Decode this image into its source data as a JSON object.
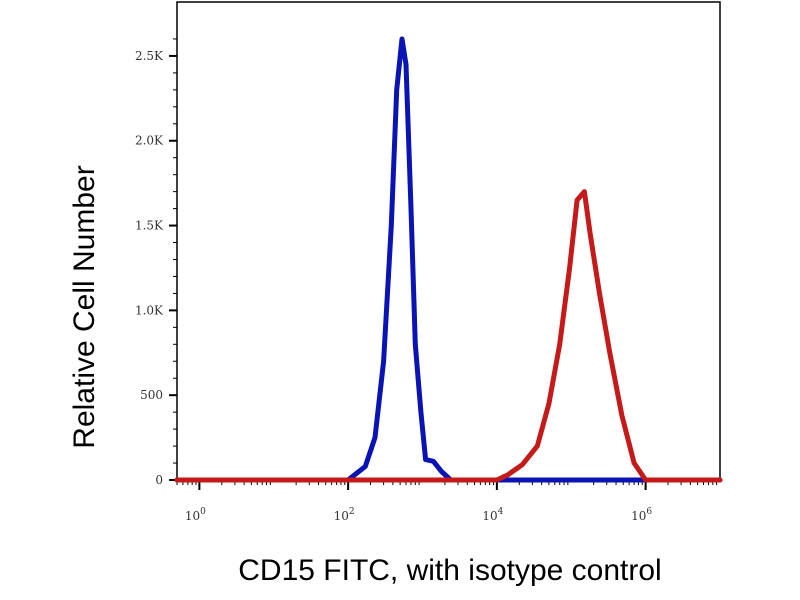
{
  "chart_data": {
    "type": "line",
    "xlabel": "CD15 FITC, with isotype control",
    "ylabel": "Relative Cell Number",
    "x_scale": "log",
    "xlim": [
      0.5,
      10000000
    ],
    "ylim": [
      0,
      2700
    ],
    "x_ticks": [
      {
        "value": 1,
        "label": "10^0"
      },
      {
        "value": 100,
        "label": "10^2"
      },
      {
        "value": 10000,
        "label": "10^4"
      },
      {
        "value": 1000000,
        "label": "10^6"
      }
    ],
    "y_ticks": [
      {
        "value": 0,
        "label": "0"
      },
      {
        "value": 500,
        "label": "500"
      },
      {
        "value": 1000,
        "label": "1.0K"
      },
      {
        "value": 1500,
        "label": "1.5K"
      },
      {
        "value": 2000,
        "label": "2.0K"
      },
      {
        "value": 2500,
        "label": "2.5K"
      }
    ],
    "grid": false,
    "legend": "none",
    "series": [
      {
        "color": "#0a14b4",
        "points": [
          [
            0.5,
            0
          ],
          [
            100,
            0
          ],
          [
            170,
            80
          ],
          [
            230,
            250
          ],
          [
            300,
            700
          ],
          [
            380,
            1500
          ],
          [
            450,
            2300
          ],
          [
            530,
            2600
          ],
          [
            600,
            2450
          ],
          [
            700,
            1600
          ],
          [
            800,
            800
          ],
          [
            950,
            400
          ],
          [
            1100,
            120
          ],
          [
            1400,
            110
          ],
          [
            1800,
            50
          ],
          [
            2400,
            0
          ],
          [
            10000000,
            0
          ]
        ]
      },
      {
        "color": "#c41a1a",
        "points": [
          [
            0.5,
            0
          ],
          [
            10000,
            0
          ],
          [
            14000,
            30
          ],
          [
            22000,
            90
          ],
          [
            35000,
            200
          ],
          [
            50000,
            450
          ],
          [
            70000,
            800
          ],
          [
            95000,
            1250
          ],
          [
            120000,
            1650
          ],
          [
            150000,
            1700
          ],
          [
            180000,
            1450
          ],
          [
            240000,
            1100
          ],
          [
            330000,
            750
          ],
          [
            480000,
            380
          ],
          [
            700000,
            100
          ],
          [
            1000000,
            0
          ],
          [
            10000000,
            0
          ]
        ]
      }
    ]
  }
}
